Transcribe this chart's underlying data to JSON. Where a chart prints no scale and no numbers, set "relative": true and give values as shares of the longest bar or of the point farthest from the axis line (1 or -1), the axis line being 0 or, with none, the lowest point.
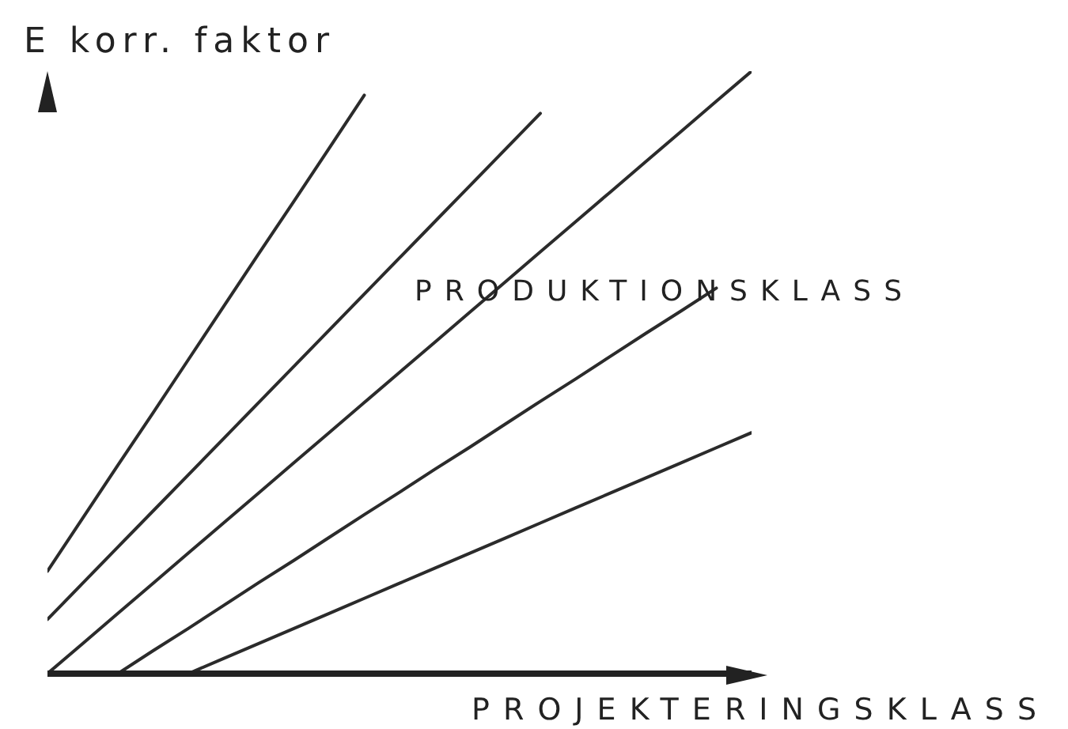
{
  "chart_data": {
    "type": "line",
    "relative": true,
    "ylabel": "E korr. faktor",
    "xlabel": "PROJEKTERINGSKLASS",
    "annotations": [
      "PRODUKTIONSKLASS"
    ],
    "categories": [
      null,
      null,
      null,
      null,
      null,
      null,
      null,
      null,
      null,
      null,
      null,
      null,
      null,
      null,
      null,
      null,
      null,
      null,
      null,
      null,
      null
    ],
    "series": [
      {
        "color": "#2b2b2b",
        "values": [
          0.17,
          0.258,
          0.346,
          0.433,
          0.521,
          0.609,
          0.697,
          0.784,
          0.872,
          0.96,
          null,
          null,
          null,
          null,
          null,
          null,
          null,
          null,
          null,
          null,
          null
        ]
      },
      {
        "color": "#2b2b2b",
        "values": [
          0.09,
          0.15,
          0.21,
          0.27,
          0.33,
          0.39,
          0.45,
          0.51,
          0.57,
          0.63,
          0.69,
          0.75,
          0.81,
          0.87,
          0.93,
          null,
          null,
          null,
          null,
          null,
          null
        ]
      },
      {
        "color": "#2b2b2b",
        "values": [
          0,
          0.05,
          0.1,
          0.15,
          0.2,
          0.25,
          0.3,
          0.35,
          0.4,
          0.45,
          0.5,
          0.55,
          0.6,
          0.65,
          0.7,
          0.75,
          0.8,
          0.85,
          0.9,
          0.95,
          1
        ]
      },
      {
        "color": "#2b2b2b",
        "values": [
          null,
          null,
          0,
          0.038,
          0.075,
          0.113,
          0.151,
          0.188,
          0.226,
          0.264,
          0.301,
          0.339,
          0.376,
          0.414,
          0.452,
          0.489,
          0.527,
          0.565,
          0.602,
          0.64,
          null
        ]
      },
      {
        "color": "#2b2b2b",
        "values": [
          null,
          null,
          null,
          null,
          0,
          0.025,
          0.05,
          0.075,
          0.1,
          0.125,
          0.15,
          0.175,
          0.2,
          0.225,
          0.25,
          0.275,
          0.3,
          0.325,
          0.35,
          0.375,
          0.4
        ]
      }
    ],
    "marker": "none",
    "grid": false,
    "legend": false
  }
}
